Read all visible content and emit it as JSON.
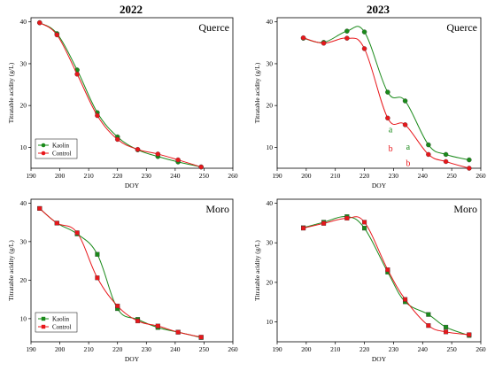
{
  "figure": {
    "column_titles": [
      "2022",
      "2023"
    ]
  },
  "colors": {
    "kaolin": "#1a8a1a",
    "control": "#e8171b",
    "axis": "#000000",
    "background": "#ffffff"
  },
  "chart_data": [
    {
      "type": "line",
      "panel": "top-left",
      "title": "Querce",
      "xlabel": "DOY",
      "ylabel": "Titratable acidity (g/L)",
      "xlim": [
        190,
        260
      ],
      "ylim": [
        5,
        41
      ],
      "xticks": [
        190,
        200,
        210,
        220,
        230,
        240,
        250,
        260
      ],
      "yticks": [
        10,
        20,
        30,
        40
      ],
      "legend": {
        "show": true,
        "placement": "bottom-left",
        "marker_shape": "circle"
      },
      "series": [
        {
          "name": "Kaolin",
          "color": "#1a8a1a",
          "marker": "circle",
          "x": [
            193,
            199,
            206,
            213,
            220,
            227,
            234,
            241,
            249
          ],
          "y": [
            39.8,
            37.2,
            28.5,
            18.3,
            12.5,
            9.4,
            7.8,
            6.5,
            5.3
          ]
        },
        {
          "name": "Control",
          "color": "#e8171b",
          "marker": "circle",
          "x": [
            193,
            199,
            206,
            213,
            220,
            227,
            234,
            241,
            249
          ],
          "y": [
            39.8,
            36.9,
            27.5,
            17.6,
            11.9,
            9.5,
            8.4,
            7.0,
            5.3
          ]
        }
      ],
      "annotations": []
    },
    {
      "type": "line",
      "panel": "top-right",
      "title": "Querce",
      "xlabel": "DOY",
      "ylabel": "Titratable acidity (g/L)",
      "xlim": [
        190,
        260
      ],
      "ylim": [
        5,
        41
      ],
      "xticks": [
        190,
        200,
        210,
        220,
        230,
        240,
        250,
        260
      ],
      "yticks": [
        10,
        20,
        30,
        40
      ],
      "legend": {
        "show": false
      },
      "series": [
        {
          "name": "Kaolin",
          "color": "#1a8a1a",
          "marker": "circle",
          "x": [
            199,
            206,
            214,
            220,
            228,
            234,
            242,
            248,
            256
          ],
          "y": [
            36.1,
            35.1,
            37.8,
            37.6,
            23.2,
            21.1,
            10.6,
            8.3,
            7.0
          ]
        },
        {
          "name": "Control",
          "color": "#e8171b",
          "marker": "circle",
          "x": [
            199,
            206,
            214,
            220,
            228,
            234,
            242,
            248,
            256
          ],
          "y": [
            36.2,
            34.9,
            36.1,
            33.6,
            17.0,
            15.4,
            8.3,
            6.6,
            5.0
          ]
        }
      ],
      "annotations": [
        {
          "text": "a",
          "x": 229,
          "y": 13.6,
          "color": "#1a8a1a"
        },
        {
          "text": "b",
          "x": 229,
          "y": 9.0,
          "color": "#e8171b"
        },
        {
          "text": "a",
          "x": 235,
          "y": 9.5,
          "color": "#1a8a1a"
        },
        {
          "text": "b",
          "x": 235,
          "y": 5.5,
          "color": "#e8171b"
        }
      ]
    },
    {
      "type": "line",
      "panel": "bottom-left",
      "title": "Moro",
      "xlabel": "DOY",
      "ylabel": "Titratable acidity (g/L)",
      "xlim": [
        190,
        260
      ],
      "ylim": [
        4,
        41
      ],
      "xticks": [
        190,
        200,
        210,
        220,
        230,
        240,
        250,
        260
      ],
      "yticks": [
        10,
        20,
        30,
        40
      ],
      "legend": {
        "show": true,
        "placement": "bottom-left",
        "marker_shape": "square"
      },
      "series": [
        {
          "name": "Kaolin",
          "color": "#1a8a1a",
          "marker": "square",
          "x": [
            193,
            199,
            206,
            213,
            220,
            227,
            234,
            241,
            249
          ],
          "y": [
            38.6,
            34.8,
            32.0,
            26.7,
            12.6,
            9.8,
            7.7,
            6.5,
            5.1
          ]
        },
        {
          "name": "Control",
          "color": "#e8171b",
          "marker": "square",
          "x": [
            193,
            199,
            206,
            213,
            220,
            227,
            234,
            241,
            249
          ],
          "y": [
            38.6,
            34.8,
            32.3,
            20.6,
            13.3,
            9.4,
            8.1,
            6.5,
            5.2
          ]
        }
      ],
      "annotations": []
    },
    {
      "type": "line",
      "panel": "bottom-right",
      "title": "Moro",
      "xlabel": "DOY",
      "ylabel": "Titratable acidity (g/L)",
      "xlim": [
        190,
        260
      ],
      "ylim": [
        5,
        41
      ],
      "xticks": [
        190,
        200,
        210,
        220,
        230,
        240,
        250,
        260
      ],
      "yticks": [
        10,
        20,
        30,
        40
      ],
      "legend": {
        "show": false
      },
      "series": [
        {
          "name": "Kaolin",
          "color": "#1a8a1a",
          "marker": "square",
          "x": [
            199,
            206,
            214,
            220,
            228,
            234,
            242,
            248,
            256
          ],
          "y": [
            33.8,
            35.2,
            36.6,
            33.7,
            22.6,
            15.1,
            11.9,
            8.7,
            6.6
          ]
        },
        {
          "name": "Control",
          "color": "#e8171b",
          "marker": "square",
          "x": [
            199,
            206,
            214,
            220,
            228,
            234,
            242,
            248,
            256
          ],
          "y": [
            33.7,
            34.9,
            36.2,
            35.2,
            23.2,
            15.7,
            9.1,
            7.5,
            6.8
          ]
        }
      ],
      "annotations": []
    }
  ]
}
